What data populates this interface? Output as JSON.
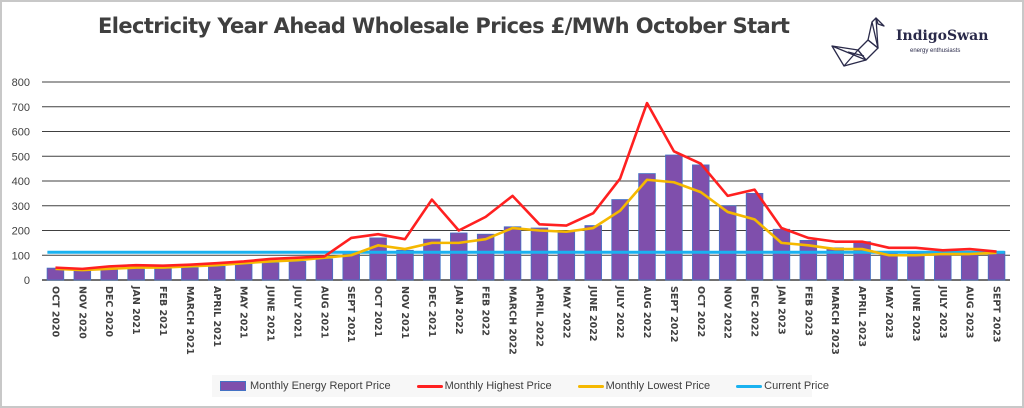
{
  "title": "Electricity Year Ahead Wholesale Prices £/MWh October Start",
  "logo": {
    "name": "IndigoSwan",
    "tagline": "energy enthusiasts",
    "icon": "origami-swan-icon"
  },
  "colors": {
    "bar": "#7f4fac",
    "bar_border": "#4472c4",
    "highest": "#ff2020",
    "lowest": "#f5b800",
    "current": "#1ab2f0",
    "grid": "#404040"
  },
  "legend": {
    "items": [
      {
        "label": "Monthly Energy Report Price",
        "type": "bar"
      },
      {
        "label": "Monthly Highest Price",
        "type": "line"
      },
      {
        "label": "Monthly Lowest Price",
        "type": "line"
      },
      {
        "label": "Current Price",
        "type": "line"
      }
    ]
  },
  "chart_data": {
    "type": "bar",
    "title": "Electricity Year Ahead Wholesale Prices £/MWh October Start",
    "xlabel": "",
    "ylabel": "",
    "ylim": [
      0,
      800
    ],
    "yticks": [
      "0",
      "100",
      "200",
      "300",
      "400",
      "500",
      "600",
      "700",
      "800"
    ],
    "grid": true,
    "legend_position": "bottom",
    "categories": [
      "OCT 2020",
      "NOV 2020",
      "DEC 2020",
      "JAN 2021",
      "FEB 2021",
      "MARCH 2021",
      "APRIL 2021",
      "MAY 2021",
      "JUNE 2021",
      "JULY 2021",
      "AUG 2021",
      "SEPT 2021",
      "OCT 2021",
      "NOV 2021",
      "DEC 2021",
      "JAN 2022",
      "FEB 2022",
      "MARCH 2022",
      "APRIL 2022",
      "MAY 2022",
      "JUNE 2022",
      "JULY 2022",
      "AUG 2022",
      "SEPT 2022",
      "OCT 2022",
      "NOV 2022",
      "DEC 2022",
      "JAN 2023",
      "FEB 2023",
      "MARCH 2023",
      "APRIL 2023",
      "MAY 2023",
      "JUNE 2023",
      "JULY 2023",
      "AUG 2023",
      "SEPT 2023"
    ],
    "series": [
      {
        "name": "Monthly Energy Report Price",
        "type": "bar",
        "values": [
          48,
          45,
          48,
          50,
          50,
          50,
          55,
          65,
          70,
          75,
          85,
          105,
          170,
          120,
          165,
          190,
          185,
          215,
          210,
          195,
          220,
          325,
          430,
          505,
          465,
          300,
          350,
          205,
          160,
          130,
          155,
          115,
          115,
          115,
          110,
          115
        ]
      },
      {
        "name": "Monthly Highest Price",
        "type": "line",
        "values": [
          50,
          45,
          55,
          60,
          58,
          62,
          68,
          75,
          85,
          90,
          95,
          170,
          185,
          165,
          325,
          200,
          255,
          340,
          225,
          220,
          270,
          410,
          715,
          520,
          470,
          340,
          365,
          210,
          170,
          155,
          155,
          130,
          130,
          120,
          125,
          115
        ]
      },
      {
        "name": "Monthly Lowest Price",
        "type": "line",
        "values": [
          45,
          40,
          45,
          50,
          50,
          55,
          60,
          68,
          75,
          80,
          90,
          100,
          140,
          125,
          150,
          150,
          165,
          210,
          200,
          195,
          210,
          280,
          405,
          395,
          355,
          275,
          245,
          150,
          140,
          125,
          125,
          100,
          100,
          105,
          105,
          110
        ]
      },
      {
        "name": "Current Price",
        "type": "line",
        "values": [
          112,
          112,
          112,
          112,
          112,
          112,
          112,
          112,
          112,
          112,
          112,
          112,
          112,
          112,
          112,
          112,
          112,
          112,
          112,
          112,
          112,
          112,
          112,
          112,
          112,
          112,
          112,
          112,
          112,
          112,
          112,
          112,
          112,
          112,
          112,
          112
        ]
      }
    ]
  }
}
